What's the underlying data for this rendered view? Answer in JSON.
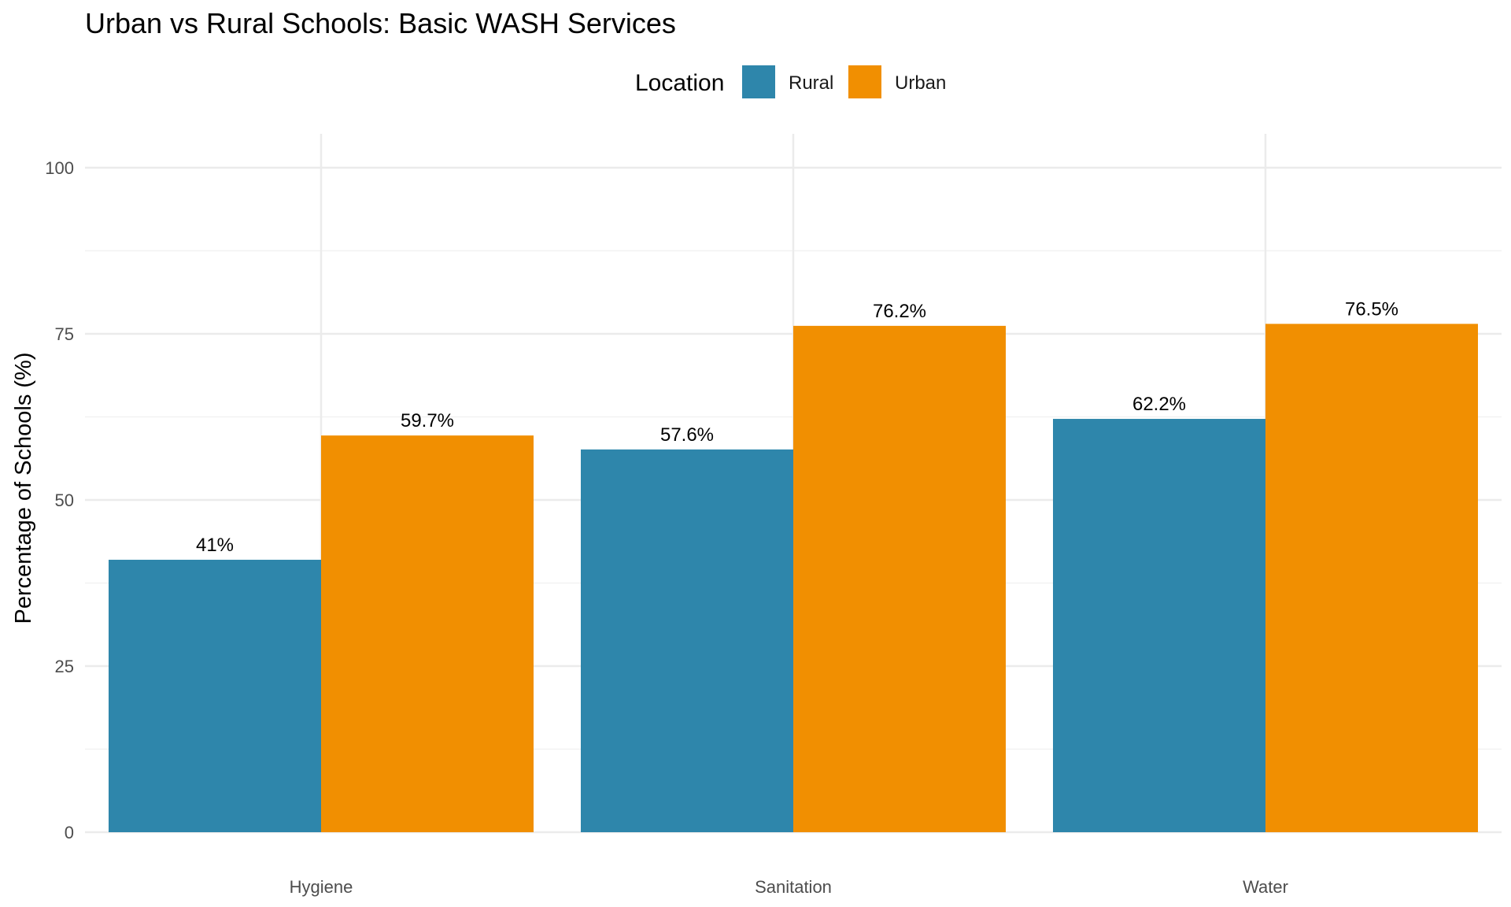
{
  "chart_data": {
    "type": "bar",
    "title": "Urban vs Rural Schools: Basic WASH Services",
    "xlabel": "",
    "ylabel": "Percentage of Schools (%)",
    "categories": [
      "Hygiene",
      "Sanitation",
      "Water"
    ],
    "series": [
      {
        "name": "Rural",
        "color": "#2E86AB",
        "values": [
          41.0,
          57.6,
          62.2
        ],
        "labels": [
          "41%",
          "57.6%",
          "62.2%"
        ]
      },
      {
        "name": "Urban",
        "color": "#F18F01",
        "values": [
          59.7,
          76.2,
          76.5
        ],
        "labels": [
          "59.7%",
          "76.2%",
          "76.5%"
        ]
      }
    ],
    "ylim": [
      0,
      100
    ],
    "yticks": [
      0,
      25,
      50,
      75,
      100
    ],
    "legend": {
      "title": "Location",
      "position": "top"
    },
    "grid": true
  }
}
